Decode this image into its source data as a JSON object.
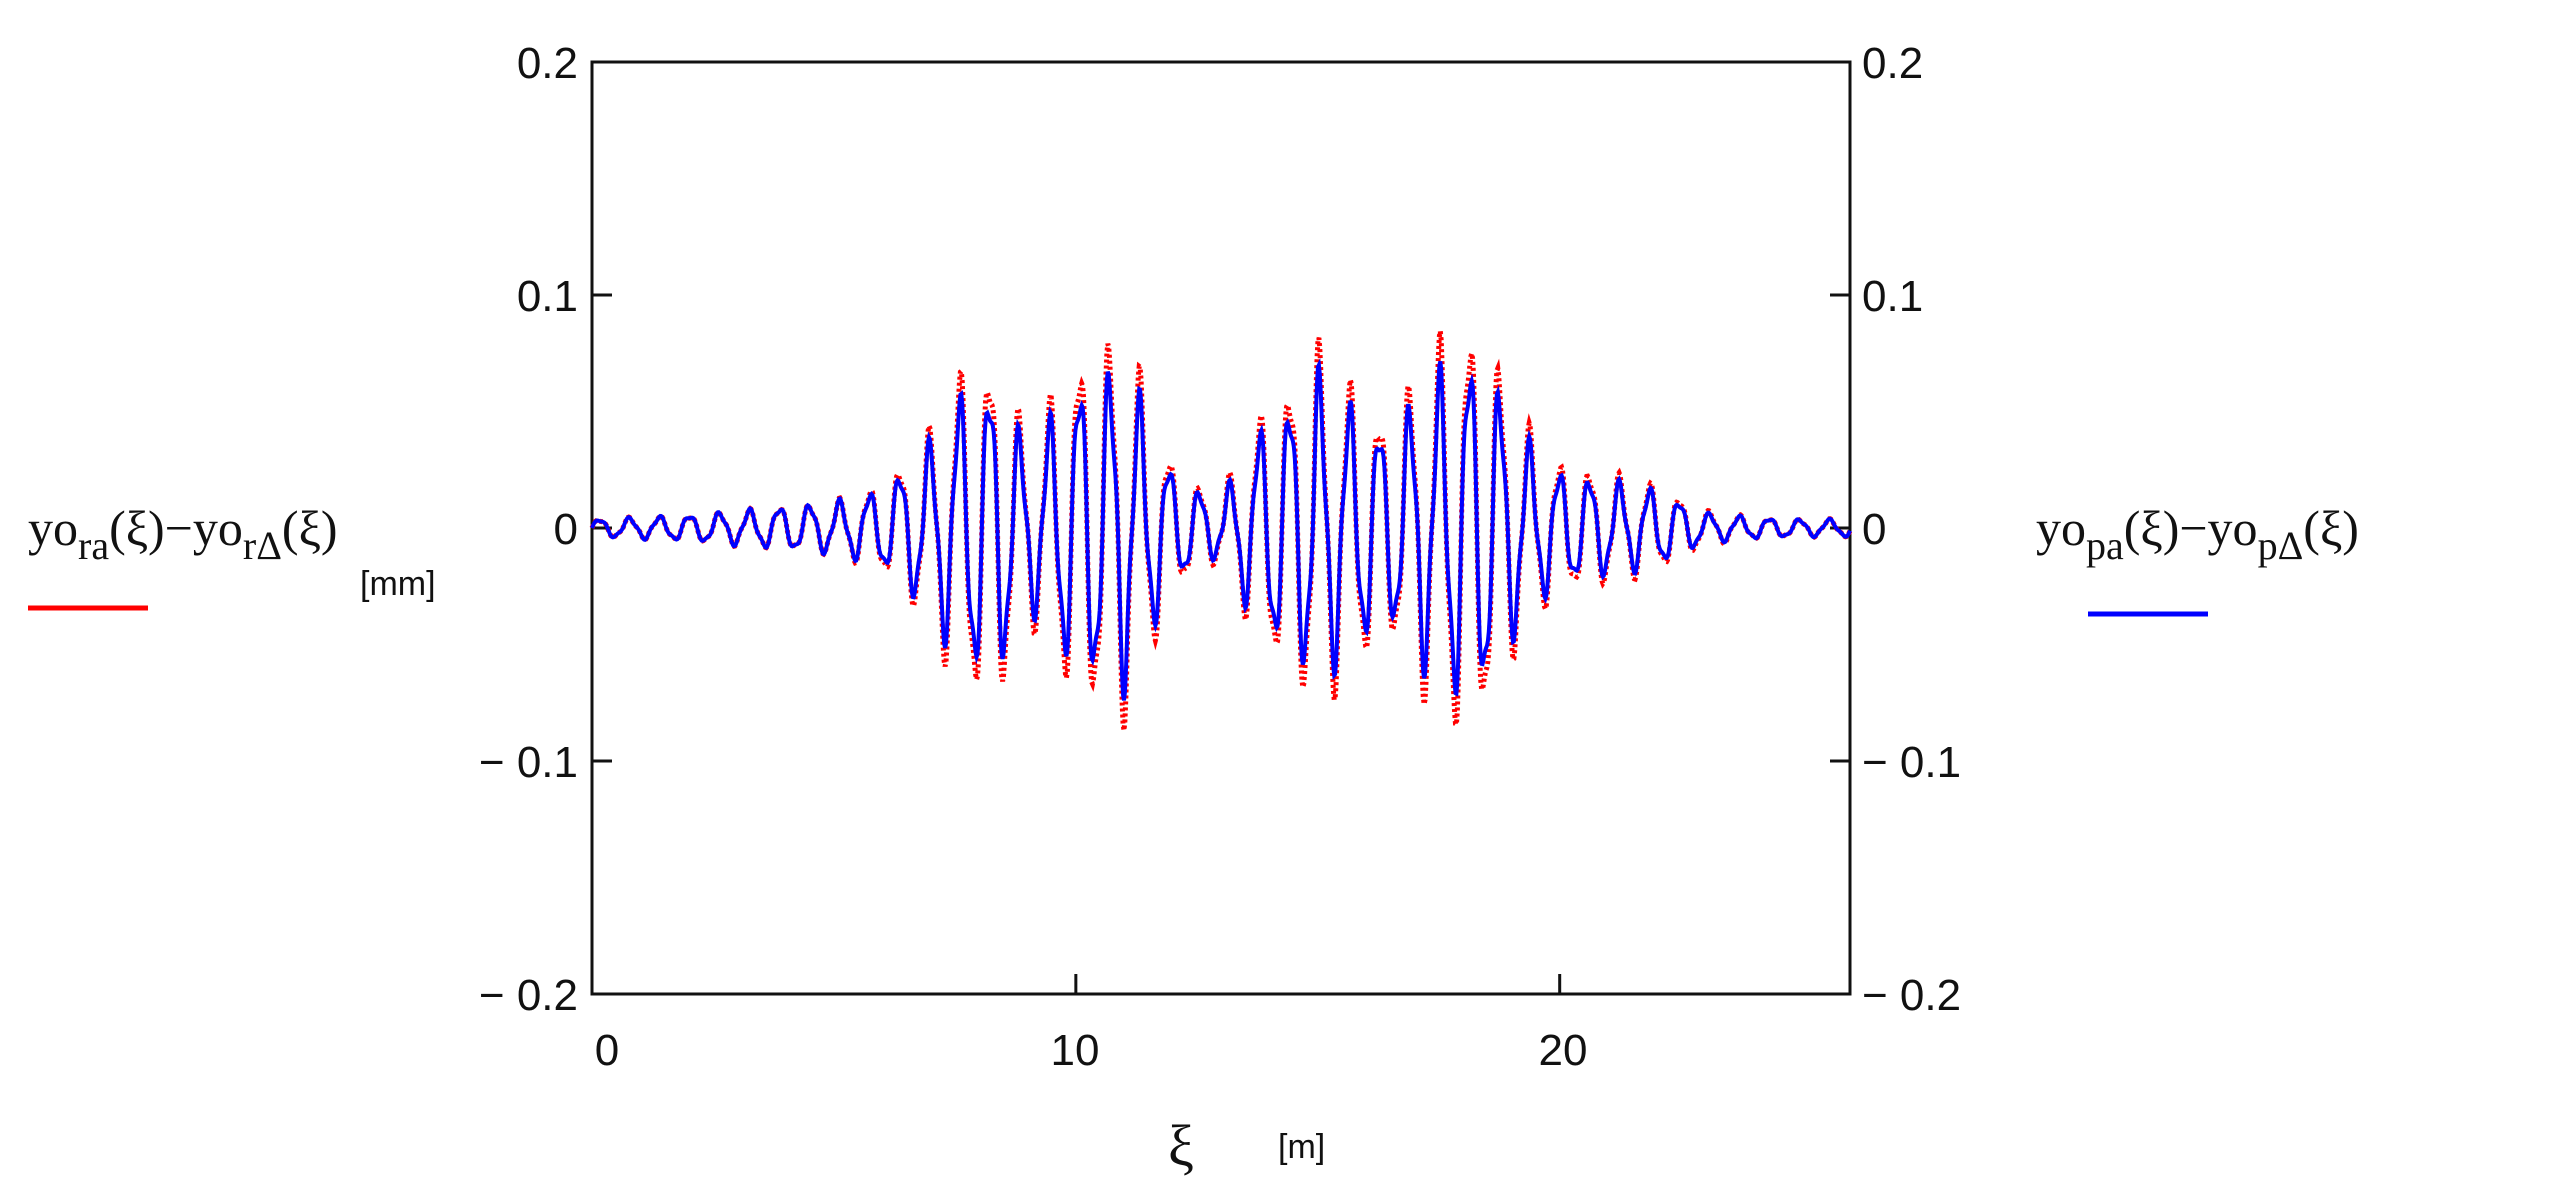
{
  "chart_data": {
    "type": "line",
    "xlim": [
      0,
      26
    ],
    "ylim": [
      -0.2,
      0.2
    ],
    "x_ticks": [
      "0",
      "10",
      "20"
    ],
    "y_ticks_left": [
      "0.2",
      "0.1",
      "0",
      "− 0.1",
      "− 0.2"
    ],
    "y_ticks_right": [
      "0.2",
      "0.1",
      "0",
      "− 0.1",
      "− 0.2"
    ],
    "y_tick_values": [
      0.2,
      0.1,
      0,
      -0.1,
      -0.2
    ],
    "x_tick_values": [
      0,
      10,
      20
    ],
    "xlabel": {
      "symbol": "ξ",
      "unit": "[m]"
    },
    "ylabel_left": {
      "p1": "yo",
      "s1": "ra",
      "p2": "(ξ)−yo",
      "s2": "rΔ",
      "p3": "(ξ)",
      "unit": "[mm]"
    },
    "ylabel_right": {
      "p1": "yo",
      "s1": "pa",
      "p2": "(ξ)−yo",
      "s2": "pΔ",
      "p3": "(ξ)"
    },
    "grid": false,
    "series": [
      {
        "color": "#ff0000",
        "style": "dotted",
        "x": [
          0,
          1,
          2,
          3,
          4,
          5,
          6,
          7,
          7.5,
          8,
          8.5,
          9,
          9.5,
          10,
          10.5,
          11,
          11.5,
          12,
          12.5,
          13,
          13.5,
          14,
          14.5,
          15,
          15.5,
          16,
          16.5,
          17,
          17.5,
          18,
          18.5,
          19,
          19.5,
          20,
          21,
          22,
          23,
          24,
          25,
          26
        ],
        "envelope": [
          0.004,
          0.005,
          0.006,
          0.008,
          0.01,
          0.012,
          0.02,
          0.045,
          0.07,
          0.08,
          0.075,
          0.04,
          0.06,
          0.08,
          0.085,
          0.088,
          0.06,
          0.03,
          0.02,
          0.015,
          0.04,
          0.06,
          0.07,
          0.084,
          0.07,
          0.06,
          0.05,
          0.07,
          0.085,
          0.095,
          0.09,
          0.06,
          0.04,
          0.03,
          0.025,
          0.02,
          0.008,
          0.005,
          0.004,
          0.004
        ]
      },
      {
        "color": "#0000ff",
        "style": "solid",
        "x": [
          0,
          1,
          2,
          3,
          4,
          5,
          6,
          7,
          7.5,
          8,
          8.5,
          9,
          9.5,
          10,
          10.5,
          11,
          11.5,
          12,
          12.5,
          13,
          13.5,
          14,
          14.5,
          15,
          15.5,
          16,
          16.5,
          17,
          17.5,
          18,
          18.5,
          19,
          19.5,
          20,
          21,
          22,
          23,
          24,
          25,
          26
        ],
        "envelope": [
          0.004,
          0.005,
          0.006,
          0.008,
          0.01,
          0.012,
          0.018,
          0.04,
          0.06,
          0.068,
          0.064,
          0.035,
          0.052,
          0.068,
          0.072,
          0.075,
          0.052,
          0.026,
          0.018,
          0.013,
          0.035,
          0.052,
          0.06,
          0.072,
          0.06,
          0.052,
          0.044,
          0.06,
          0.072,
          0.08,
          0.076,
          0.052,
          0.035,
          0.026,
          0.022,
          0.018,
          0.007,
          0.005,
          0.004,
          0.004
        ]
      }
    ]
  }
}
